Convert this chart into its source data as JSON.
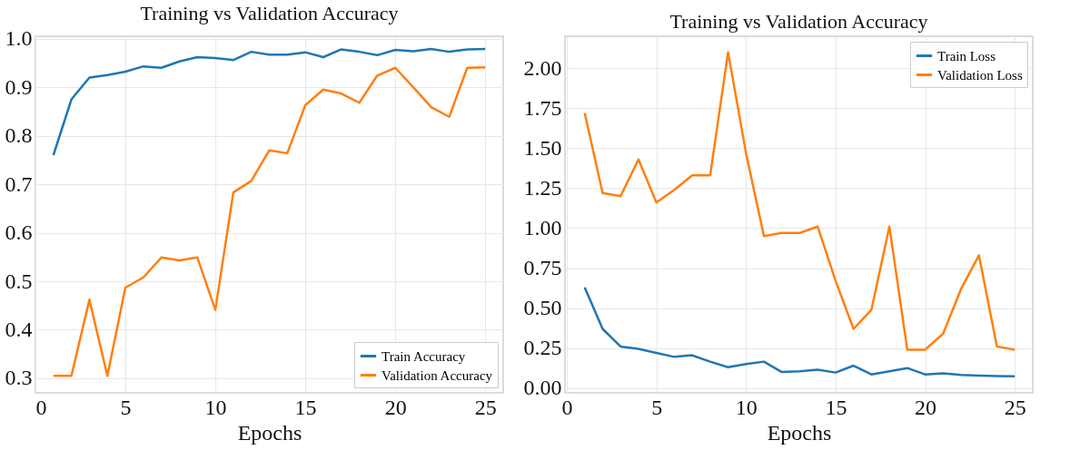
{
  "chart_data": [
    {
      "type": "line",
      "title": "Training vs Validation Accuracy",
      "xlabel": "Epochs",
      "x": [
        1,
        2,
        3,
        4,
        5,
        6,
        7,
        8,
        9,
        10,
        11,
        12,
        13,
        14,
        15,
        16,
        17,
        18,
        19,
        20,
        21,
        22,
        23,
        24,
        25
      ],
      "series": [
        {
          "name": "Train Accuracy",
          "color": "#1f77b4",
          "values": [
            0.76,
            0.875,
            0.92,
            0.925,
            0.932,
            0.943,
            0.94,
            0.953,
            0.962,
            0.96,
            0.956,
            0.973,
            0.967,
            0.967,
            0.972,
            0.962,
            0.978,
            0.973,
            0.966,
            0.977,
            0.974,
            0.979,
            0.973,
            0.978,
            0.979
          ]
        },
        {
          "name": "Validation Accuracy",
          "color": "#ff7f0e",
          "values": [
            0.305,
            0.305,
            0.462,
            0.305,
            0.487,
            0.508,
            0.549,
            0.543,
            0.549,
            0.441,
            0.683,
            0.707,
            0.77,
            0.764,
            0.863,
            0.895,
            0.887,
            0.868,
            0.924,
            0.94,
            0.9,
            0.859,
            0.839,
            0.94,
            0.941
          ]
        }
      ],
      "xlim": [
        0,
        26
      ],
      "xticks": [
        0,
        5,
        10,
        15,
        20,
        25
      ],
      "ylim": [
        0.27,
        1.005
      ],
      "yticks": [
        {
          "value": 0.3,
          "label": "0.3"
        },
        {
          "value": 0.4,
          "label": "0.4"
        },
        {
          "value": 0.5,
          "label": "0.5"
        },
        {
          "value": 0.6,
          "label": "0.6"
        },
        {
          "value": 0.7,
          "label": "0.7"
        },
        {
          "value": 0.8,
          "label": "0.8"
        },
        {
          "value": 0.9,
          "label": "0.9"
        },
        {
          "value": 1,
          "label": "1.0"
        }
      ],
      "grid": true,
      "legend": "bottom right"
    },
    {
      "type": "line",
      "title": "Training vs Validation Accuracy",
      "xlabel": "Epochs",
      "x": [
        1,
        2,
        3,
        4,
        5,
        6,
        7,
        8,
        9,
        10,
        11,
        12,
        13,
        14,
        15,
        16,
        17,
        18,
        19,
        20,
        21,
        22,
        23,
        24,
        25
      ],
      "series": [
        {
          "name": "Train Loss",
          "color": "#1f77b4",
          "values": [
            0.63,
            0.37,
            0.26,
            0.245,
            0.22,
            0.195,
            0.205,
            0.165,
            0.13,
            0.15,
            0.165,
            0.1,
            0.105,
            0.115,
            0.097,
            0.14,
            0.085,
            0.105,
            0.125,
            0.085,
            0.092,
            0.082,
            0.078,
            0.075,
            0.073
          ]
        },
        {
          "name": "Validation Loss",
          "color": "#ff7f0e",
          "values": [
            1.72,
            1.22,
            1.2,
            1.43,
            1.16,
            1.24,
            1.33,
            1.33,
            2.1,
            1.47,
            0.95,
            0.97,
            0.97,
            1.01,
            0.67,
            0.37,
            0.49,
            1.01,
            0.24,
            0.24,
            0.34,
            0.62,
            0.83,
            0.26,
            0.24
          ]
        }
      ],
      "xlim": [
        -0.1,
        26
      ],
      "xticks": [
        0,
        5,
        10,
        15,
        20,
        25
      ],
      "ylim": [
        -0.03,
        2.2
      ],
      "yticks": [
        {
          "value": 0,
          "label": "0.00"
        },
        {
          "value": 0.25,
          "label": "0.25"
        },
        {
          "value": 0.5,
          "label": "0.50"
        },
        {
          "value": 0.75,
          "label": "0.75"
        },
        {
          "value": 1,
          "label": "1.00"
        },
        {
          "value": 1.25,
          "label": "1.25"
        },
        {
          "value": 1.5,
          "label": "1.50"
        },
        {
          "value": 1.75,
          "label": "1.75"
        },
        {
          "value": 2,
          "label": "2.00"
        }
      ],
      "grid": true,
      "legend": "top right"
    }
  ]
}
